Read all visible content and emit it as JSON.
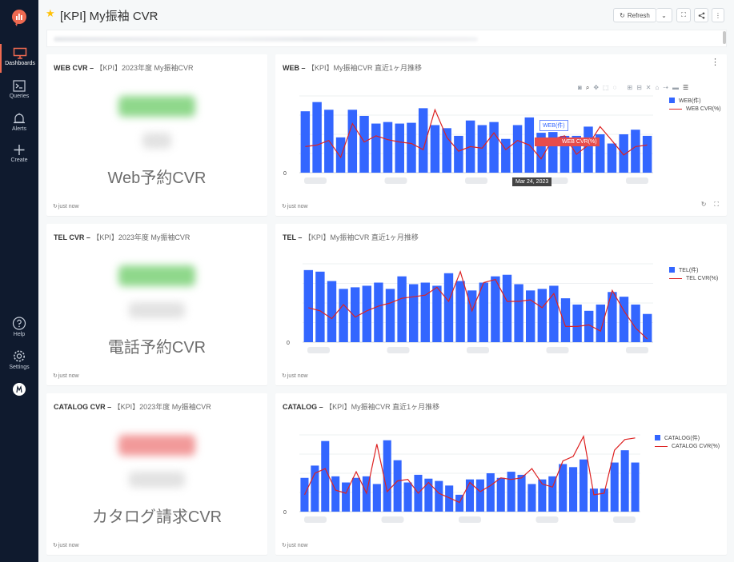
{
  "app": {
    "nav": [
      {
        "key": "dashboards",
        "label": "Dashboards",
        "icon": "monitor-icon"
      },
      {
        "key": "queries",
        "label": "Queries",
        "icon": "terminal-icon"
      },
      {
        "key": "alerts",
        "label": "Alerts",
        "icon": "bell-icon"
      },
      {
        "key": "create",
        "label": "Create",
        "icon": "plus-icon"
      },
      {
        "key": "help",
        "label": "Help",
        "icon": "help-icon"
      },
      {
        "key": "settings",
        "label": "Settings",
        "icon": "gear-icon"
      }
    ],
    "accent": "#ef6a51",
    "sidebar_bg": "#0f1a2e"
  },
  "header": {
    "title": "[KPI] My振袖 CVR",
    "title_suffix": "✎",
    "refresh_label": "Refresh"
  },
  "widgets": {
    "web_counter": {
      "title_bold": "WEB CVR – ",
      "title_rest": "【KPI】2023年度 My振袖CVR",
      "label": "Web予約CVR",
      "footer": "just now",
      "value_color": "#5cc45a"
    },
    "web_chart": {
      "title_bold": "WEB – ",
      "title_rest": "【KPI】My振袖CVR 直近1ヶ月推移",
      "footer": "just now",
      "zero": "0",
      "legend_bar": "WEB(件)",
      "legend_line": "WEB CVR(%)",
      "tip_bar": "WEB(件)",
      "tip_line": "WEB CVR(%)",
      "tip_date": "Mar 24, 2023"
    },
    "tel_counter": {
      "title_bold": "TEL CVR – ",
      "title_rest": "【KPI】2023年度 My振袖CVR",
      "label": "電話予約CVR",
      "footer": "just now",
      "value_color": "#5cc45a"
    },
    "tel_chart": {
      "title_bold": "TEL – ",
      "title_rest": "【KPI】My振袖CVR 直近1ヶ月推移",
      "footer": "just now",
      "zero": "0",
      "legend_bar": "TEL(件)",
      "legend_line": "TEL CVR(%)"
    },
    "catalog_counter": {
      "title_bold": "CATALOG CVR – ",
      "title_rest": "【KPI】2023年度 My振袖CVR",
      "label": "カタログ請求CVR",
      "footer": "just now",
      "value_color": "#ef5a5a"
    },
    "catalog_chart": {
      "title_bold": "CATALOG – ",
      "title_rest": "【KPI】My振袖CVR 直近1ヶ月推移",
      "footer": "just now",
      "zero": "0",
      "legend_bar": "CATALOG(件)",
      "legend_line": "CATALOG CVR(%)"
    }
  },
  "chart_data": [
    {
      "type": "bar",
      "name": "web_chart",
      "series": [
        {
          "name": "WEB(件)",
          "kind": "bar",
          "color": "#3366ff",
          "values": [
            80,
            92,
            82,
            46,
            82,
            74,
            64,
            66,
            64,
            65,
            84,
            62,
            58,
            48,
            68,
            62,
            66,
            44,
            62,
            72,
            52,
            53,
            48,
            48,
            60,
            50,
            38,
            50,
            56,
            48
          ]
        },
        {
          "name": "WEB CVR(%)",
          "kind": "line",
          "color": "#dd2222",
          "values": [
            34,
            36,
            42,
            20,
            64,
            40,
            48,
            43,
            40,
            38,
            30,
            82,
            46,
            28,
            34,
            32,
            52,
            30,
            42,
            36,
            18,
            44,
            48,
            24,
            36,
            60,
            42,
            23,
            34,
            36
          ]
        }
      ],
      "ylim": [
        0,
        100
      ]
    },
    {
      "type": "bar",
      "name": "tel_chart",
      "series": [
        {
          "name": "TEL(件)",
          "kind": "bar",
          "color": "#3366ff",
          "values": [
            92,
            90,
            78,
            68,
            70,
            72,
            76,
            68,
            84,
            74,
            76,
            72,
            88,
            78,
            66,
            76,
            84,
            86,
            74,
            66,
            68,
            72,
            56,
            48,
            40,
            48,
            64,
            58,
            48,
            36
          ]
        },
        {
          "name": "TEL CVR(%)",
          "kind": "line",
          "color": "#dd2222",
          "values": [
            44,
            40,
            30,
            48,
            32,
            40,
            46,
            50,
            56,
            58,
            60,
            70,
            52,
            90,
            40,
            76,
            80,
            52,
            52,
            54,
            44,
            62,
            20,
            20,
            22,
            14,
            66,
            40,
            18,
            4
          ]
        }
      ],
      "ylim": [
        0,
        100
      ]
    },
    {
      "type": "bar",
      "name": "catalog_chart",
      "series": [
        {
          "name": "CATALOG(件)",
          "kind": "bar",
          "color": "#3366ff",
          "values": [
            44,
            60,
            92,
            46,
            38,
            44,
            46,
            36,
            93,
            67,
            38,
            48,
            43,
            40,
            34,
            22,
            42,
            42,
            50,
            44,
            52,
            48,
            36,
            42,
            46,
            62,
            58,
            68,
            30,
            30,
            64,
            80,
            64
          ]
        },
        {
          "name": "CATALOG CVR(%)",
          "kind": "line",
          "color": "#dd2222",
          "values": [
            22,
            50,
            56,
            28,
            24,
            52,
            24,
            88,
            26,
            40,
            42,
            24,
            38,
            24,
            18,
            12,
            38,
            26,
            34,
            44,
            42,
            44,
            56,
            36,
            32,
            66,
            72,
            98,
            22,
            24,
            80,
            94,
            96
          ]
        }
      ],
      "ylim": [
        0,
        100
      ]
    }
  ]
}
